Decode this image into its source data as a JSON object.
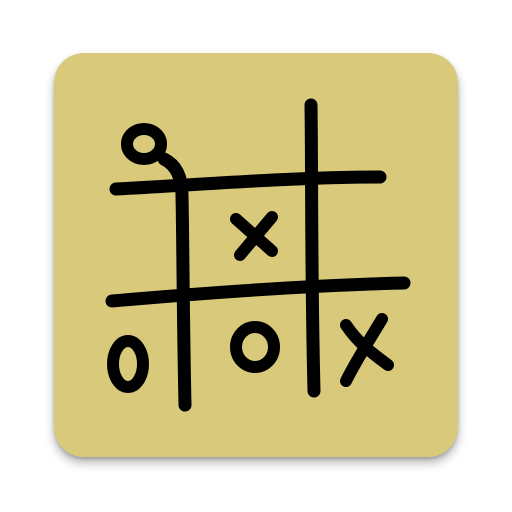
{
  "icon": {
    "name": "tic-tac-toe-app-icon",
    "background_color": "#d9c97a",
    "ink_color": "#000000",
    "board": [
      [
        "O",
        "",
        ""
      ],
      [
        "",
        "X",
        ""
      ],
      [
        "O",
        "O",
        "X"
      ]
    ]
  }
}
